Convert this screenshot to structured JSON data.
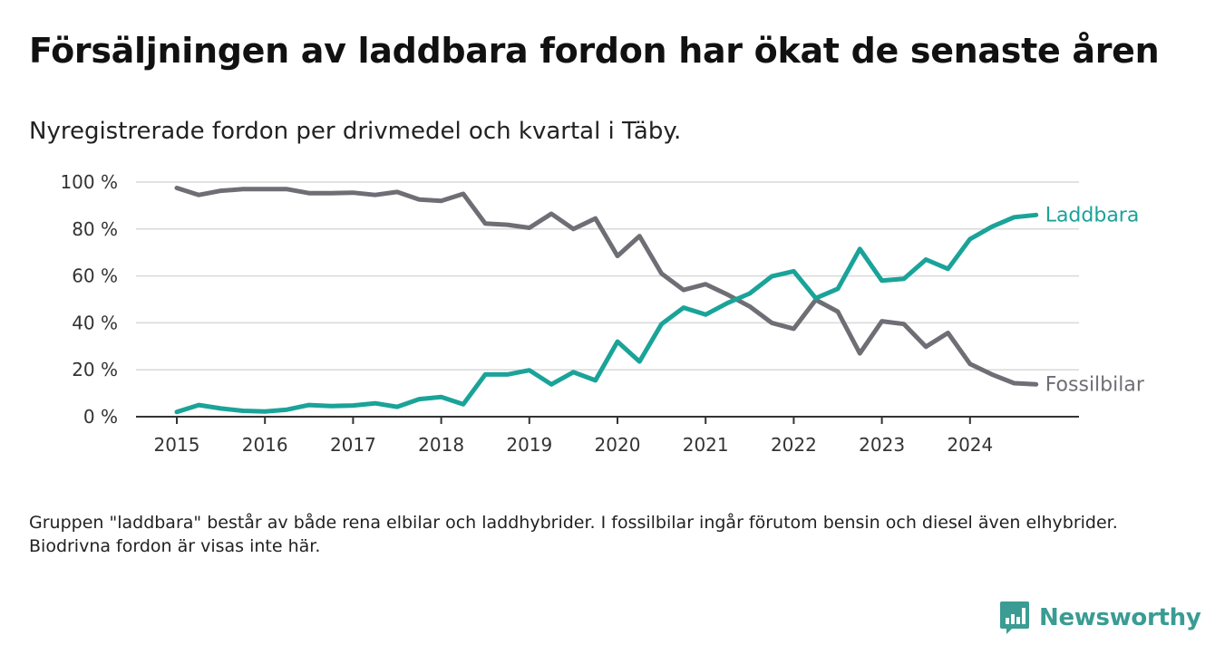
{
  "title": "Försäljningen av laddbara fordon har ökat de senaste åren",
  "subtitle": "Nyregistrerade fordon per drivmedel och kvartal i Täby.",
  "note": "Gruppen \"laddbara\" består av både rena elbilar och laddhybrider. I fossilbilar ingår förutom bensin och diesel även elhybrider. Biodrivna fordon är visas inte här.",
  "brand": {
    "name": "Newsworthy",
    "icon": "bar-chart-logo-icon",
    "color": "#3a9c93"
  },
  "chart_data": {
    "type": "line",
    "x_ticks": [
      "2015",
      "2016",
      "2017",
      "2018",
      "2019",
      "2020",
      "2021",
      "2022",
      "2023",
      "2024"
    ],
    "y_ticks": [
      "0 %",
      "20 %",
      "40 %",
      "60 %",
      "80 %",
      "100 %"
    ],
    "ylim": [
      0,
      100
    ],
    "x_start": 2015,
    "step": 0.25,
    "grid": true,
    "series": [
      {
        "name": "Laddbara",
        "color": "#1aa399",
        "values": [
          2,
          5,
          3.5,
          2.5,
          2.2,
          3,
          5,
          4.5,
          4.8,
          5.7,
          4.2,
          7.5,
          8.4,
          5.3,
          18,
          18,
          19.8,
          13.8,
          19,
          15.5,
          32,
          23.5,
          39.5,
          46.5,
          43.5,
          48.5,
          52.5,
          59.8,
          62,
          50.5,
          54.5,
          71.5,
          58,
          58.8,
          67,
          63,
          75.7,
          81,
          85,
          86
        ]
      },
      {
        "name": "Fossilbilar",
        "color": "#6e6e75",
        "values": [
          97.5,
          94.5,
          96.3,
          97,
          97,
          97,
          95.3,
          95.3,
          95.5,
          94.5,
          95.8,
          92.6,
          92,
          95,
          82.3,
          81.8,
          80.5,
          86.5,
          80,
          84.5,
          68.5,
          77,
          61,
          54,
          56.5,
          52,
          47,
          40,
          37.5,
          49.8,
          44.8,
          27,
          40.7,
          39.5,
          29.8,
          35.7,
          22.5,
          18,
          14.3,
          13.8
        ]
      }
    ]
  }
}
